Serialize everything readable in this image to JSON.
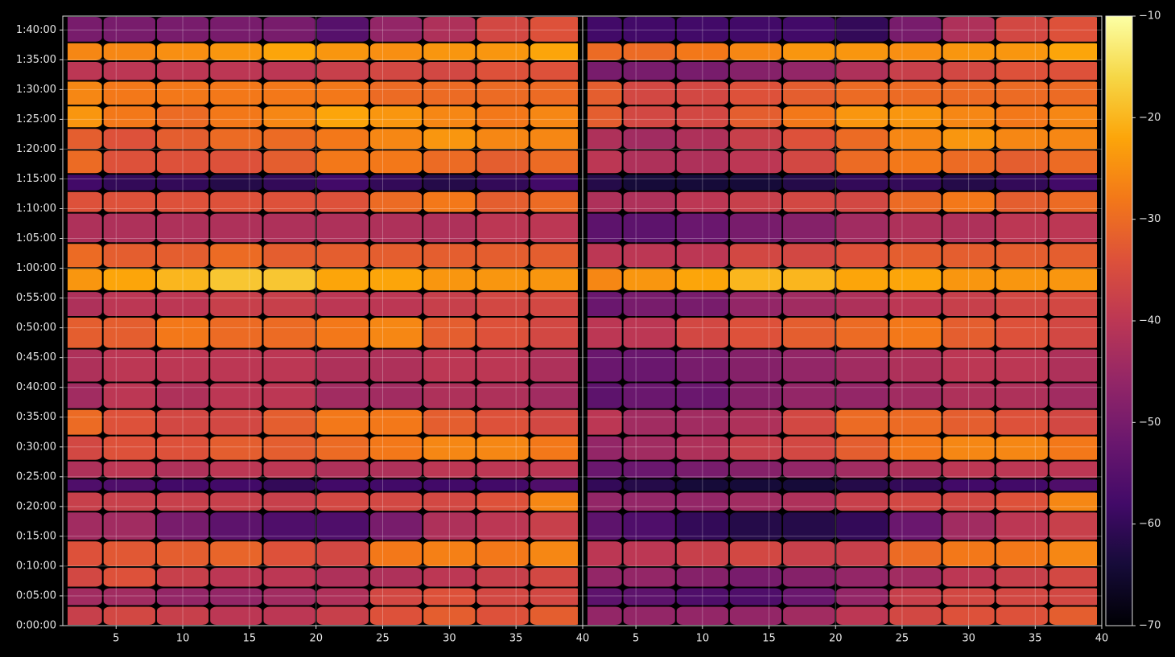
{
  "chart_data": {
    "type": "heatmap",
    "colormap": "inferno",
    "grid": true,
    "x": [
      2,
      6,
      10,
      14,
      18,
      22,
      26,
      30,
      34,
      38
    ],
    "xlim": [
      1,
      40
    ],
    "xticks": [
      5,
      10,
      15,
      20,
      25,
      30,
      35,
      40
    ],
    "y": [
      97,
      300,
      470,
      713,
      1000,
      1296,
      1401,
      1560,
      1765,
      2065,
      2300,
      2600,
      2980,
      3240,
      3498,
      3708,
      4000,
      4316,
      4437,
      4664,
      4923,
      5101,
      5376,
      5600,
      5773,
      5976
    ],
    "ylim": [
      0,
      6140
    ],
    "yticks": [
      {
        "value": 0,
        "label": "0:00:00"
      },
      {
        "value": 300,
        "label": "0:05:00"
      },
      {
        "value": 600,
        "label": "0:10:00"
      },
      {
        "value": 900,
        "label": "0:15:00"
      },
      {
        "value": 1200,
        "label": "0:20:00"
      },
      {
        "value": 1500,
        "label": "0:25:00"
      },
      {
        "value": 1800,
        "label": "0:30:00"
      },
      {
        "value": 2100,
        "label": "0:35:00"
      },
      {
        "value": 2400,
        "label": "0:40:00"
      },
      {
        "value": 2700,
        "label": "0:45:00"
      },
      {
        "value": 3000,
        "label": "0:50:00"
      },
      {
        "value": 3300,
        "label": "0:55:00"
      },
      {
        "value": 3600,
        "label": "1:00:00"
      },
      {
        "value": 3900,
        "label": "1:05:00"
      },
      {
        "value": 4200,
        "label": "1:10:00"
      },
      {
        "value": 4500,
        "label": "1:15:00"
      },
      {
        "value": 4800,
        "label": "1:20:00"
      },
      {
        "value": 5100,
        "label": "1:25:00"
      },
      {
        "value": 5400,
        "label": "1:30:00"
      },
      {
        "value": 5700,
        "label": "1:35:00"
      },
      {
        "value": 6000,
        "label": "1:40:00"
      }
    ],
    "clim": [
      -70,
      -10
    ],
    "cticks": [
      {
        "value": -70,
        "label": "−70"
      },
      {
        "value": -60,
        "label": "−60"
      },
      {
        "value": -50,
        "label": "−50"
      },
      {
        "value": -40,
        "label": "−40"
      },
      {
        "value": -30,
        "label": "−30"
      },
      {
        "value": -20,
        "label": "−20"
      },
      {
        "value": -10,
        "label": "−10"
      }
    ],
    "panels": [
      {
        "values": [
          [
            -38,
            -36,
            -38,
            -40,
            -40,
            -38,
            -34,
            -32,
            -34,
            -32
          ],
          [
            -44,
            -44,
            -46,
            -46,
            -44,
            -42,
            -36,
            -34,
            -36,
            -36
          ],
          [
            -36,
            -34,
            -38,
            -40,
            -40,
            -42,
            -42,
            -40,
            -38,
            -36
          ],
          [
            -34,
            -33,
            -32,
            -31,
            -34,
            -36,
            -28,
            -27,
            -28,
            -26
          ],
          [
            -44,
            -44,
            -50,
            -54,
            -56,
            -56,
            -50,
            -42,
            -40,
            -38
          ],
          [
            -38,
            -38,
            -38,
            -38,
            -38,
            -36,
            -36,
            -36,
            -34,
            -26
          ],
          [
            -56,
            -56,
            -58,
            -58,
            -60,
            -58,
            -58,
            -58,
            -58,
            -56
          ],
          [
            -42,
            -40,
            -42,
            -40,
            -40,
            -42,
            -42,
            -40,
            -40,
            -40
          ],
          [
            -36,
            -34,
            -34,
            -32,
            -32,
            -30,
            -28,
            -26,
            -26,
            -28
          ],
          [
            -30,
            -34,
            -36,
            -36,
            -32,
            -28,
            -28,
            -32,
            -34,
            -36
          ],
          [
            -44,
            -40,
            -42,
            -40,
            -40,
            -44,
            -44,
            -42,
            -42,
            -44
          ],
          [
            -42,
            -40,
            -40,
            -40,
            -40,
            -42,
            -42,
            -40,
            -40,
            -42
          ],
          [
            -32,
            -32,
            -28,
            -30,
            -30,
            -28,
            -26,
            -32,
            -34,
            -36
          ],
          [
            -42,
            -40,
            -40,
            -38,
            -38,
            -40,
            -40,
            -38,
            -36,
            -36
          ],
          [
            -24,
            -22,
            -20,
            -18,
            -18,
            -22,
            -22,
            -24,
            -24,
            -24
          ],
          [
            -30,
            -32,
            -32,
            -30,
            -32,
            -32,
            -32,
            -32,
            -32,
            -32
          ],
          [
            -42,
            -42,
            -42,
            -42,
            -42,
            -42,
            -42,
            -42,
            -40,
            -40
          ],
          [
            -34,
            -34,
            -34,
            -34,
            -34,
            -34,
            -30,
            -28,
            -32,
            -30
          ],
          [
            -58,
            -60,
            -60,
            -62,
            -60,
            -58,
            -60,
            -62,
            -60,
            -58
          ],
          [
            -30,
            -34,
            -34,
            -34,
            -32,
            -28,
            -28,
            -30,
            -32,
            -30
          ],
          [
            -32,
            -34,
            -32,
            -30,
            -30,
            -28,
            -26,
            -24,
            -26,
            -26
          ],
          [
            -24,
            -28,
            -30,
            -28,
            -26,
            -22,
            -24,
            -26,
            -28,
            -26
          ],
          [
            -26,
            -28,
            -28,
            -28,
            -28,
            -28,
            -30,
            -30,
            -30,
            -30
          ],
          [
            -40,
            -40,
            -40,
            -40,
            -40,
            -38,
            -36,
            -36,
            -34,
            -34
          ],
          [
            -26,
            -26,
            -25,
            -24,
            -22,
            -24,
            -25,
            -24,
            -24,
            -22
          ],
          [
            -50,
            -50,
            -50,
            -50,
            -50,
            -55,
            -46,
            -42,
            -36,
            -34
          ]
        ]
      },
      {
        "values": [
          [
            -46,
            -46,
            -46,
            -46,
            -44,
            -40,
            -36,
            -34,
            -34,
            -32
          ],
          [
            -54,
            -54,
            -56,
            -56,
            -52,
            -46,
            -38,
            -36,
            -36,
            -36
          ],
          [
            -46,
            -46,
            -48,
            -50,
            -48,
            -46,
            -44,
            -40,
            -38,
            -36
          ],
          [
            -40,
            -40,
            -38,
            -36,
            -38,
            -38,
            -30,
            -28,
            -28,
            -26
          ],
          [
            -54,
            -56,
            -60,
            -62,
            -62,
            -60,
            -52,
            -44,
            -40,
            -38
          ],
          [
            -46,
            -46,
            -46,
            -44,
            -42,
            -38,
            -36,
            -36,
            -34,
            -26
          ],
          [
            -60,
            -62,
            -64,
            -64,
            -64,
            -62,
            -60,
            -58,
            -58,
            -56
          ],
          [
            -52,
            -52,
            -50,
            -48,
            -46,
            -44,
            -42,
            -40,
            -40,
            -40
          ],
          [
            -46,
            -44,
            -42,
            -38,
            -36,
            -32,
            -28,
            -26,
            -26,
            -28
          ],
          [
            -40,
            -44,
            -44,
            -42,
            -36,
            -30,
            -30,
            -32,
            -34,
            -36
          ],
          [
            -54,
            -52,
            -52,
            -48,
            -46,
            -46,
            -44,
            -42,
            -42,
            -44
          ],
          [
            -52,
            -52,
            -50,
            -48,
            -46,
            -44,
            -42,
            -40,
            -40,
            -42
          ],
          [
            -40,
            -40,
            -36,
            -34,
            -32,
            -30,
            -28,
            -32,
            -34,
            -36
          ],
          [
            -52,
            -50,
            -50,
            -46,
            -44,
            -42,
            -40,
            -38,
            -36,
            -36
          ],
          [
            -26,
            -24,
            -22,
            -20,
            -20,
            -22,
            -22,
            -24,
            -24,
            -24
          ],
          [
            -40,
            -40,
            -40,
            -36,
            -36,
            -34,
            -32,
            -32,
            -32,
            -32
          ],
          [
            -54,
            -54,
            -52,
            -50,
            -48,
            -44,
            -42,
            -42,
            -40,
            -40
          ],
          [
            -42,
            -42,
            -40,
            -38,
            -36,
            -36,
            -30,
            -28,
            -32,
            -30
          ],
          [
            -62,
            -64,
            -64,
            -64,
            -62,
            -60,
            -60,
            -62,
            -60,
            -58
          ],
          [
            -40,
            -42,
            -42,
            -40,
            -36,
            -30,
            -28,
            -30,
            -32,
            -30
          ],
          [
            -42,
            -44,
            -42,
            -38,
            -34,
            -30,
            -26,
            -24,
            -26,
            -26
          ],
          [
            -32,
            -36,
            -36,
            -32,
            -28,
            -24,
            -24,
            -26,
            -28,
            -26
          ],
          [
            -32,
            -36,
            -36,
            -34,
            -32,
            -30,
            -30,
            -30,
            -30,
            -30
          ],
          [
            -50,
            -50,
            -50,
            -48,
            -46,
            -42,
            -38,
            -36,
            -34,
            -34
          ],
          [
            -30,
            -30,
            -28,
            -26,
            -24,
            -24,
            -25,
            -24,
            -24,
            -22
          ],
          [
            -58,
            -58,
            -58,
            -58,
            -58,
            -60,
            -50,
            -42,
            -36,
            -34
          ]
        ]
      }
    ]
  }
}
